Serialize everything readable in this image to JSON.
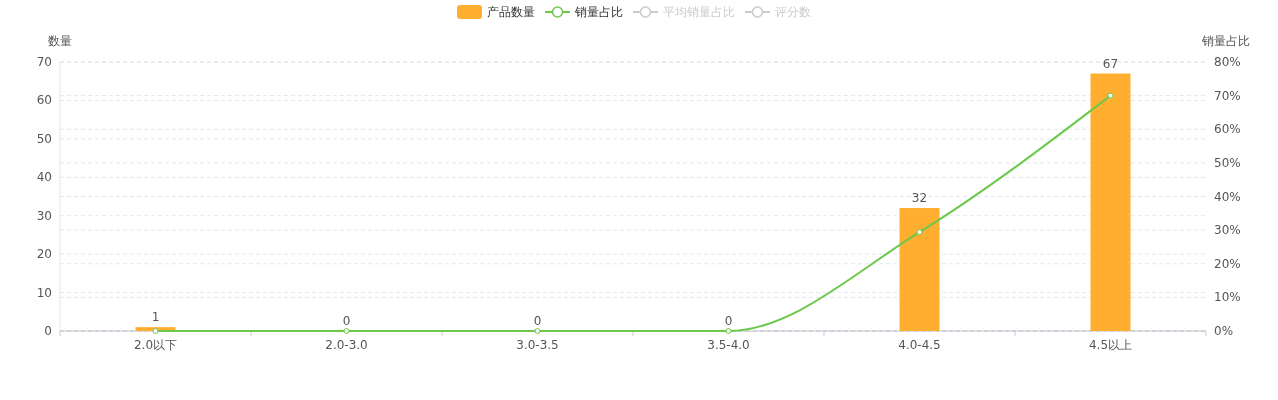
{
  "chart_data": {
    "type": "bar",
    "categories": [
      "2.0以下",
      "2.0-3.0",
      "3.0-3.5",
      "3.5-4.0",
      "4.0-4.5",
      "4.5以上"
    ],
    "ylabel": "数量",
    "y2label": "销量占比",
    "ylim": [
      0,
      70
    ],
    "yticks": [
      0,
      10,
      20,
      30,
      40,
      50,
      60,
      70
    ],
    "y2lim": [
      0,
      80
    ],
    "y2ticks": [
      {
        "value": 0,
        "label": "0%"
      },
      {
        "value": 10,
        "label": "10%"
      },
      {
        "value": 20,
        "label": "20%"
      },
      {
        "value": 30,
        "label": "30%"
      },
      {
        "value": 40,
        "label": "40%"
      },
      {
        "value": 50,
        "label": "50%"
      },
      {
        "value": 60,
        "label": "60%"
      },
      {
        "value": 70,
        "label": "70%"
      },
      {
        "value": 80,
        "label": "80%"
      }
    ],
    "grid": true,
    "legend": "top",
    "marker": "circle",
    "line_style": "solid",
    "series": [
      {
        "name": "产品数量",
        "color": "#ffae2f",
        "values": [
          1,
          0,
          0,
          0,
          32,
          67
        ],
        "value_labels": [
          "1",
          "0",
          "0",
          "0",
          "32",
          "67"
        ]
      },
      {
        "name": "销量占比",
        "type": "line",
        "axis": "y2",
        "color": "#6cc84b",
        "values": [
          0,
          0,
          0,
          0,
          29.4,
          70
        ]
      },
      {
        "name": "平均销量占比",
        "type": "line",
        "axis": "y2",
        "color": "#cccccc",
        "values": [
          null,
          null,
          null,
          null,
          null,
          null
        ]
      },
      {
        "name": "评分数",
        "type": "line",
        "axis": "y2",
        "color": "#cccccc",
        "values": [
          null,
          null,
          null,
          null,
          null,
          null
        ]
      }
    ]
  }
}
